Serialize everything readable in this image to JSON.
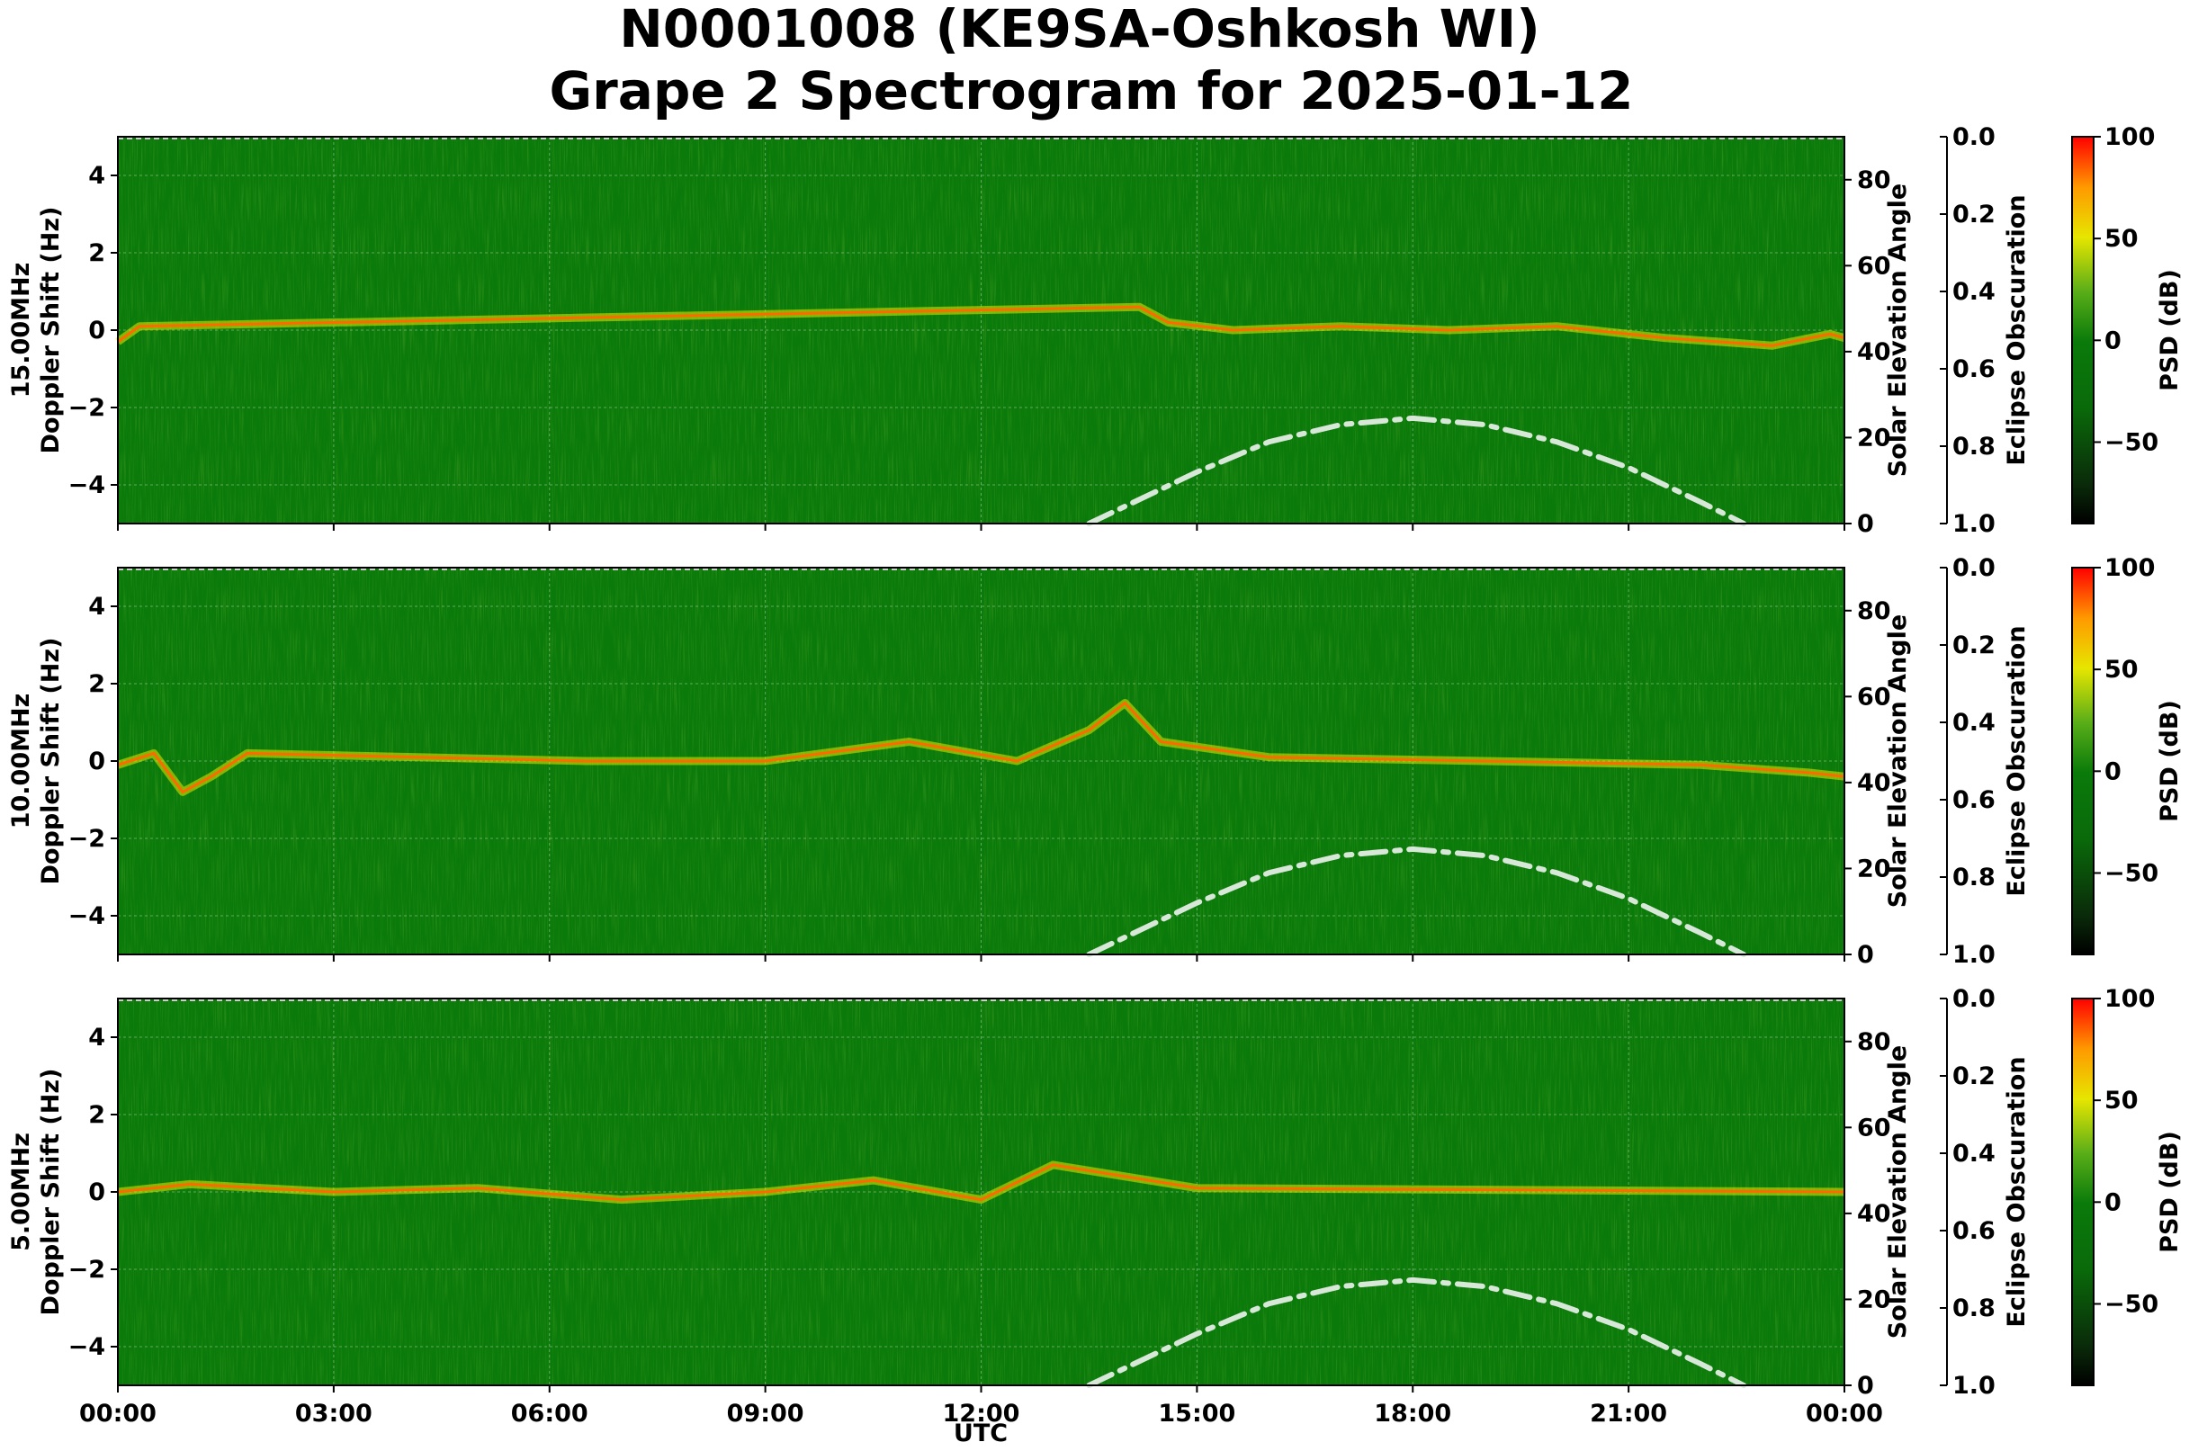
{
  "chart_data": {
    "type": "heatmap",
    "title_line1": "N0001008 (KE9SA-Oshkosh WI)",
    "title_line2": "Grape 2 Spectrogram for 2025-01-12",
    "xlabel": "UTC",
    "x_ticks": [
      "00:00",
      "03:00",
      "06:00",
      "09:00",
      "12:00",
      "15:00",
      "18:00",
      "21:00",
      "00:00"
    ],
    "x_range_hours": [
      0,
      24
    ],
    "doppler_ticks": [
      "4",
      "2",
      "0",
      "−2",
      "−4"
    ],
    "doppler_range_hz": [
      -5,
      5
    ],
    "solar_ylabel": "Solar Elevation Angle",
    "solar_ticks": [
      "80",
      "60",
      "40",
      "20",
      "0"
    ],
    "solar_range_deg": [
      0,
      90
    ],
    "eclipse_ylabel": "Eclipse Obscuration",
    "eclipse_ticks": [
      "0.0",
      "0.2",
      "0.4",
      "0.6",
      "0.8",
      "1.0"
    ],
    "colorbar_label": "PSD (dB)",
    "colorbar_ticks": [
      "100",
      "50",
      "0",
      "−50"
    ],
    "colorbar_range_db": [
      -90,
      100
    ],
    "colormap": [
      "#000000",
      "#0b4a0b",
      "#0a7a0a",
      "#3a9a10",
      "#9acd20",
      "#f0f000",
      "#ff8c00",
      "#ff0000"
    ],
    "solar_elevation_curve": [
      {
        "utc": 13.5,
        "deg": 0
      },
      {
        "utc": 15.0,
        "deg": 12
      },
      {
        "utc": 16.0,
        "deg": 19
      },
      {
        "utc": 17.0,
        "deg": 23
      },
      {
        "utc": 18.0,
        "deg": 24.5
      },
      {
        "utc": 19.0,
        "deg": 23
      },
      {
        "utc": 20.0,
        "deg": 19
      },
      {
        "utc": 21.0,
        "deg": 13
      },
      {
        "utc": 22.0,
        "deg": 5
      },
      {
        "utc": 22.6,
        "deg": 0
      }
    ],
    "panels": [
      {
        "ylabel_line1": "15.00MHz",
        "ylabel_line2": "Doppler Shift (Hz)",
        "carrier_trace": [
          {
            "utc": 0.0,
            "hz": -0.3
          },
          {
            "utc": 0.3,
            "hz": 0.1
          },
          {
            "utc": 14.2,
            "hz": 0.6
          },
          {
            "utc": 14.6,
            "hz": 0.2
          },
          {
            "utc": 15.5,
            "hz": 0.0
          },
          {
            "utc": 17.0,
            "hz": 0.1
          },
          {
            "utc": 18.5,
            "hz": 0.0
          },
          {
            "utc": 20.0,
            "hz": 0.1
          },
          {
            "utc": 21.5,
            "hz": -0.2
          },
          {
            "utc": 23.0,
            "hz": -0.4
          },
          {
            "utc": 23.8,
            "hz": -0.1
          },
          {
            "utc": 24.0,
            "hz": -0.2
          }
        ]
      },
      {
        "ylabel_line1": "10.00MHz",
        "ylabel_line2": "Doppler Shift (Hz)",
        "carrier_trace": [
          {
            "utc": 0.0,
            "hz": -0.1
          },
          {
            "utc": 0.5,
            "hz": 0.2
          },
          {
            "utc": 0.9,
            "hz": -0.8
          },
          {
            "utc": 1.3,
            "hz": -0.4
          },
          {
            "utc": 1.8,
            "hz": 0.2
          },
          {
            "utc": 6.5,
            "hz": 0.0
          },
          {
            "utc": 9.0,
            "hz": 0.0
          },
          {
            "utc": 11.0,
            "hz": 0.5
          },
          {
            "utc": 12.5,
            "hz": 0.0
          },
          {
            "utc": 13.5,
            "hz": 0.8
          },
          {
            "utc": 14.0,
            "hz": 1.5
          },
          {
            "utc": 14.5,
            "hz": 0.5
          },
          {
            "utc": 16.0,
            "hz": 0.1
          },
          {
            "utc": 19.0,
            "hz": 0.0
          },
          {
            "utc": 22.0,
            "hz": -0.1
          },
          {
            "utc": 23.5,
            "hz": -0.3
          },
          {
            "utc": 24.0,
            "hz": -0.4
          }
        ]
      },
      {
        "ylabel_line1": "5.00MHz",
        "ylabel_line2": "Doppler Shift (Hz)",
        "carrier_trace": [
          {
            "utc": 0.0,
            "hz": 0.0
          },
          {
            "utc": 1.0,
            "hz": 0.2
          },
          {
            "utc": 3.0,
            "hz": 0.0
          },
          {
            "utc": 5.0,
            "hz": 0.1
          },
          {
            "utc": 7.0,
            "hz": -0.2
          },
          {
            "utc": 9.0,
            "hz": 0.0
          },
          {
            "utc": 10.5,
            "hz": 0.3
          },
          {
            "utc": 12.0,
            "hz": -0.2
          },
          {
            "utc": 13.0,
            "hz": 0.7
          },
          {
            "utc": 14.0,
            "hz": 0.4
          },
          {
            "utc": 15.0,
            "hz": 0.1
          },
          {
            "utc": 24.0,
            "hz": 0.0
          }
        ]
      }
    ]
  }
}
